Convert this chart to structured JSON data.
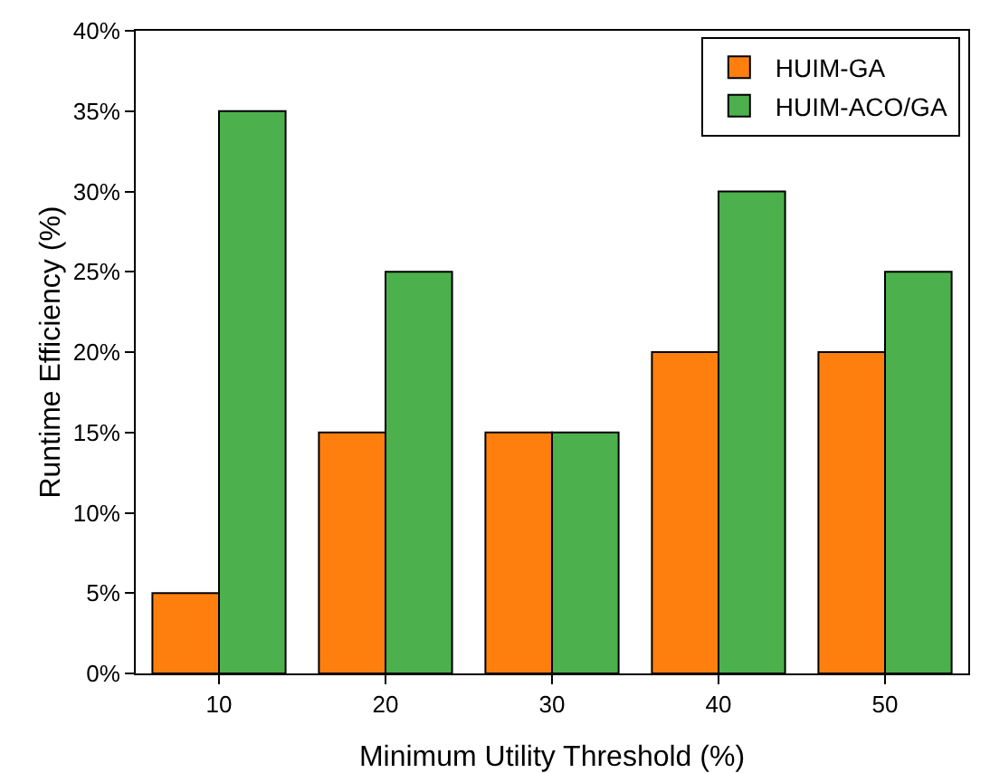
{
  "chart_data": {
    "type": "bar",
    "xlabel": "Minimum Utility Threshold (%)",
    "ylabel": "Runtime Efficiency (%)",
    "categories": [
      "10",
      "20",
      "30",
      "40",
      "50"
    ],
    "series": [
      {
        "name": "HUIM-GA",
        "color": "#ff7f0e",
        "values": [
          5,
          15,
          15,
          20,
          20
        ]
      },
      {
        "name": "HUIM-ACO/GA",
        "color": "#4cb04c",
        "values": [
          35,
          25,
          15,
          30,
          25
        ]
      }
    ],
    "ylim": [
      0,
      40
    ],
    "yticks": [
      {
        "value": 0,
        "label": "0%"
      },
      {
        "value": 5,
        "label": "5%"
      },
      {
        "value": 10,
        "label": "10%"
      },
      {
        "value": 15,
        "label": "15%"
      },
      {
        "value": 20,
        "label": "20%"
      },
      {
        "value": 25,
        "label": "25%"
      },
      {
        "value": 30,
        "label": "30%"
      },
      {
        "value": 35,
        "label": "35%"
      },
      {
        "value": 40,
        "label": "40%"
      }
    ],
    "grid": false,
    "legend": "top right"
  }
}
